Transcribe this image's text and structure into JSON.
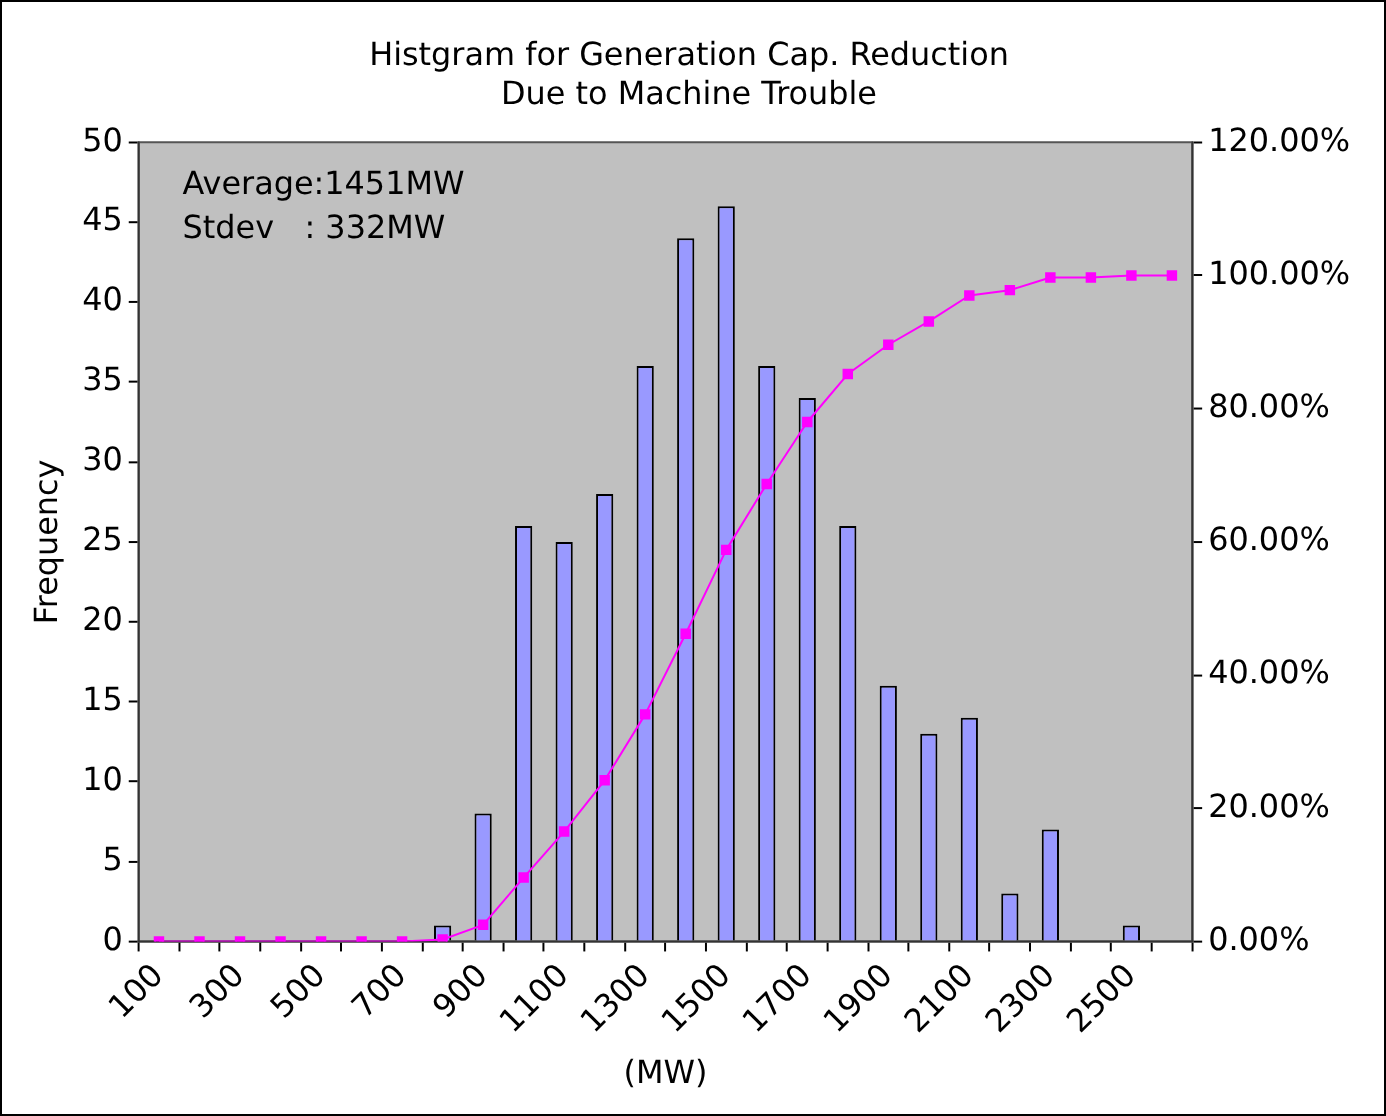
{
  "chart_data": {
    "type": "bar",
    "title": "Histgram for Generation Cap. Reduction\nDue to Machine Trouble",
    "xlabel": "(MW)",
    "ylabel": "Frequency",
    "categories": [
      "100",
      null,
      "300",
      null,
      "500",
      null,
      "700",
      null,
      "900",
      null,
      "1100",
      null,
      "1300",
      null,
      "1500",
      null,
      "1700",
      null,
      "1900",
      null,
      "2100",
      null,
      "2300",
      null,
      "2500",
      null
    ],
    "series": [
      {
        "color": "#9999ff",
        "values": [
          null,
          null,
          null,
          null,
          null,
          null,
          null,
          1,
          8,
          26,
          25,
          28,
          36,
          44,
          46,
          36,
          34,
          26,
          16,
          13,
          14,
          3,
          7,
          0,
          1,
          0
        ]
      },
      {
        "type": "line",
        "axis": "y2",
        "color": "#ff00ff",
        "values": [
          0,
          0,
          0,
          0,
          0,
          0,
          0,
          0.3,
          2.5,
          9.6,
          16.5,
          24.2,
          34.1,
          46.2,
          58.8,
          68.7,
          78.0,
          85.2,
          89.6,
          93.1,
          97.0,
          97.8,
          99.7,
          99.7,
          100,
          100
        ]
      }
    ],
    "ylim": [
      0,
      50
    ],
    "yticks": [
      0,
      5,
      10,
      15,
      20,
      25,
      30,
      35,
      40,
      45,
      50
    ],
    "y2lim": [
      0,
      120
    ],
    "y2ticks": [
      {
        "value": 0,
        "label": "0.00%"
      },
      {
        "value": 20,
        "label": "20.00%"
      },
      {
        "value": 40,
        "label": "40.00%"
      },
      {
        "value": 60,
        "label": "60.00%"
      },
      {
        "value": 80,
        "label": "80.00%"
      },
      {
        "value": 100,
        "label": "100.00%"
      },
      {
        "value": 120,
        "label": "120.00%"
      }
    ],
    "annotations": [
      "Average:1451MW",
      "Stdev   : 332MW"
    ],
    "grid": false,
    "legend": false,
    "marker": "square",
    "line_style": "solid"
  }
}
